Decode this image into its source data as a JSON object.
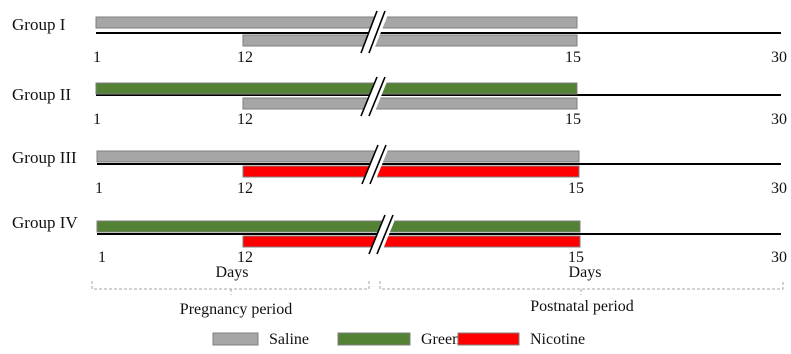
{
  "colors": {
    "saline": "#a6a6a6",
    "green_tea": "#548235",
    "nicotine": "#ff0000",
    "bar_border": "#7f7f7f",
    "timeline": "#000000",
    "bracket": "#a6a6a6"
  },
  "groups": [
    {
      "label": "Group I",
      "top_bar": {
        "treatment": "saline",
        "label": "Saline",
        "from": 1,
        "to": 15
      },
      "bottom_bar": {
        "treatment": "saline",
        "label": "Saline",
        "from": 12,
        "to": 15
      },
      "ticks": [
        "1",
        "12",
        "15",
        "30"
      ]
    },
    {
      "label": "Group II",
      "top_bar": {
        "treatment": "green_tea",
        "label": "Green tea",
        "from": 1,
        "to": 15
      },
      "bottom_bar": {
        "treatment": "saline",
        "label": "Saline",
        "from": 12,
        "to": 15
      },
      "ticks": [
        "1",
        "12",
        "15",
        "30"
      ]
    },
    {
      "label": "Group III",
      "top_bar": {
        "treatment": "saline",
        "label": "Saline",
        "from": 1,
        "to": 15
      },
      "bottom_bar": {
        "treatment": "nicotine",
        "label": "Nicotine",
        "from": 12,
        "to": 15
      },
      "ticks": [
        "1",
        "12",
        "15",
        "30"
      ]
    },
    {
      "label": "Group IV",
      "top_bar": {
        "treatment": "green_tea",
        "label": "Green tea",
        "from": 1,
        "to": 15
      },
      "bottom_bar": {
        "treatment": "nicotine",
        "label": "Nicotine",
        "from": 12,
        "to": 15
      },
      "ticks": [
        "1",
        "12",
        "15",
        "30"
      ]
    }
  ],
  "periods": {
    "days_label_left": "Days",
    "days_label_right": "Days",
    "pregnancy": "Pregnancy period",
    "postnatal": "Postnatal period"
  },
  "legend": [
    {
      "key": "saline",
      "label": "Saline"
    },
    {
      "key": "green_tea",
      "label": "Green tea"
    },
    {
      "key": "nicotine",
      "label": "Nicotine"
    }
  ]
}
